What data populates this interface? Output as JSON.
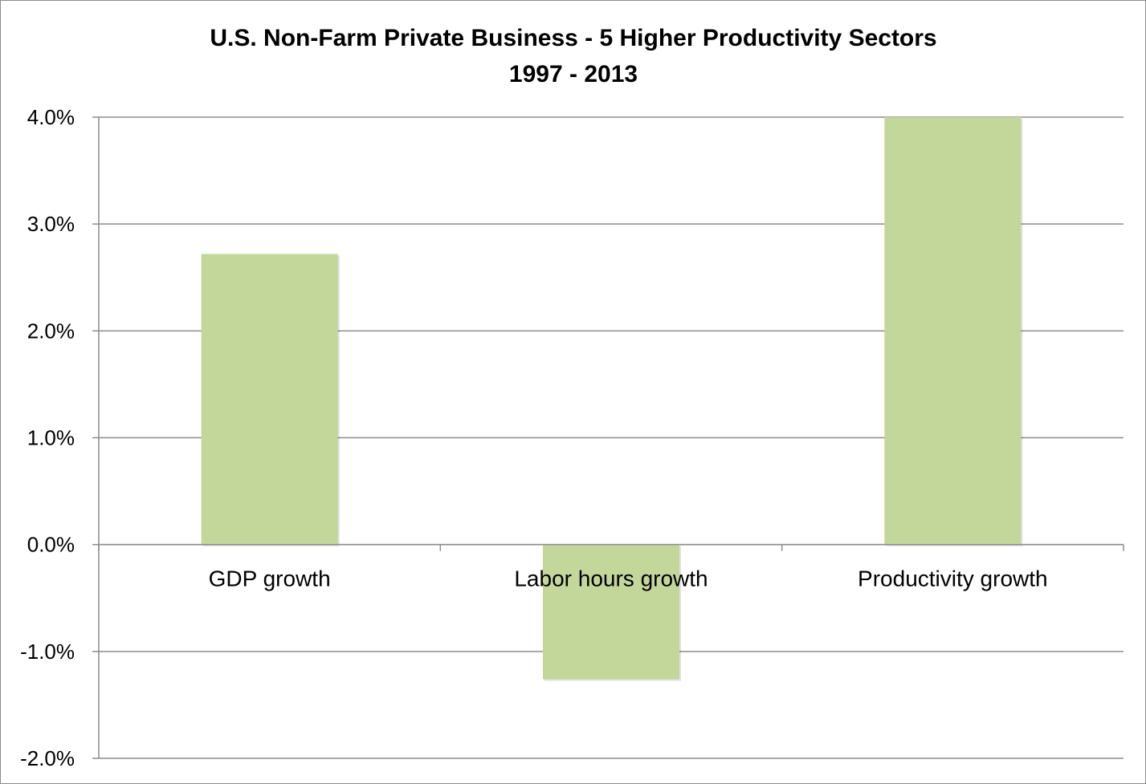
{
  "chart_data": {
    "type": "bar",
    "title": "U.S. Non-Farm Private Business - 5 Higher Productivity Sectors",
    "subtitle": "1997 - 2013",
    "categories": [
      "GDP growth",
      "Labor hours growth",
      "Productivity growth"
    ],
    "values": [
      2.72,
      -1.26,
      4.0
    ],
    "value_format": "percent",
    "ylim": [
      -2.0,
      4.0
    ],
    "yticks": [
      4.0,
      3.0,
      2.0,
      1.0,
      0.0,
      -1.0,
      -2.0
    ],
    "ytick_labels": [
      "4.0%",
      "3.0%",
      "2.0%",
      "1.0%",
      "0.0%",
      "-1.0%",
      "-2.0%"
    ],
    "xlabel": "",
    "ylabel": "",
    "grid": true,
    "legend": "none",
    "bar_color": "#c4d79b",
    "grid_color": "#8c8c8c"
  }
}
